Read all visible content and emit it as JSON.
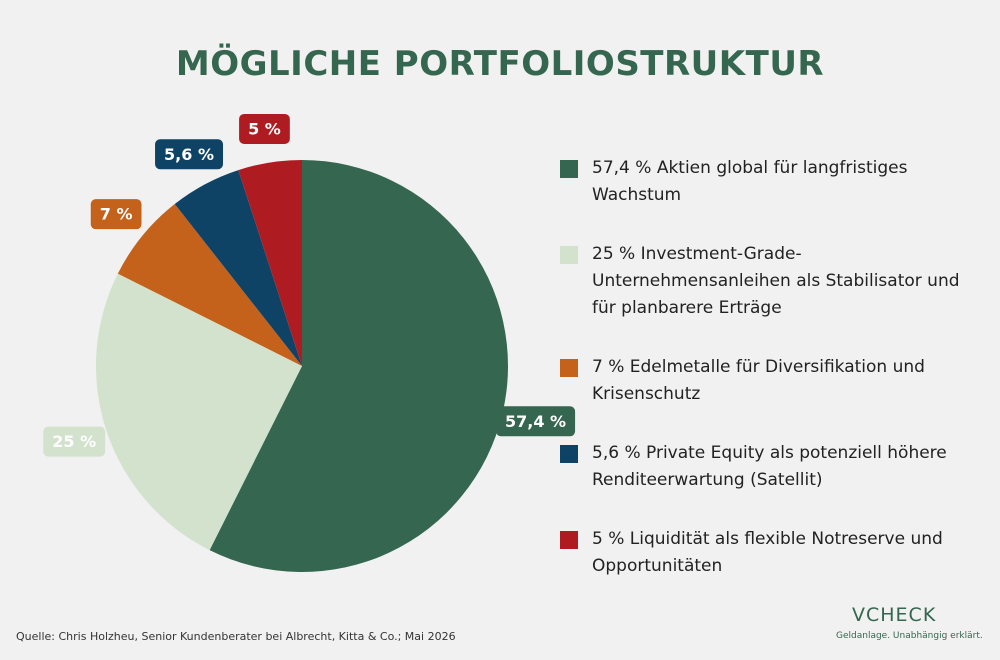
{
  "chart_data": {
    "type": "pie",
    "title": "MÖGLICHE PORTFOLIOSTRUKTUR",
    "categories": [
      "57,4 % Aktien global für langfristiges Wachstum",
      "25 % Investment-Grade-Unternehmensanleihen als Stabilisator und für planbarere Erträge",
      "7 % Edelmetalle für Diversifikation und Krisenschutz",
      "5,6 % Private Equity als potenziell höhere Renditeerwartung (Satellit)",
      "5 % Liquidität als flexible Notreserve und Opportunitäten"
    ],
    "values": [
      57.4,
      25,
      7,
      5.6,
      5
    ],
    "value_labels": [
      "57,4 %",
      "25 %",
      "7 %",
      "5,6 %",
      "5 %"
    ],
    "colors": [
      "#356650",
      "#d3e2cc",
      "#c4611a",
      "#0f4366",
      "#ae1c22"
    ],
    "legend": "right"
  },
  "source": "Quelle: Chris Holzheu, Senior Kundenberater bei Albrecht, Kitta & Co.; Mai 2026",
  "logo": {
    "brand": "VCHECK",
    "tagline": "Geldanlage. Unabhängig erklärt."
  }
}
